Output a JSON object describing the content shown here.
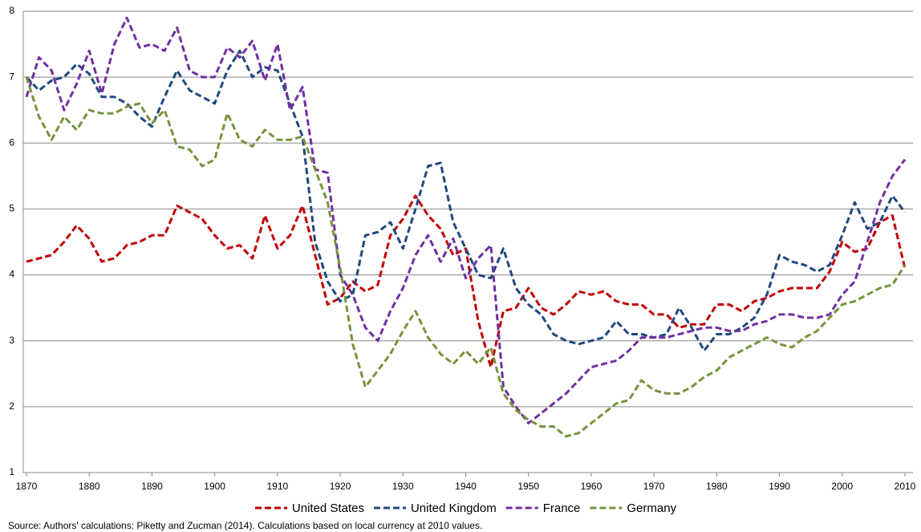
{
  "chart_data": {
    "type": "line",
    "x": [
      1870,
      1872,
      1874,
      1876,
      1878,
      1880,
      1882,
      1884,
      1886,
      1888,
      1890,
      1892,
      1894,
      1896,
      1898,
      1900,
      1902,
      1904,
      1906,
      1908,
      1910,
      1912,
      1914,
      1916,
      1918,
      1920,
      1922,
      1924,
      1926,
      1928,
      1930,
      1932,
      1934,
      1936,
      1938,
      1940,
      1942,
      1944,
      1946,
      1948,
      1950,
      1952,
      1954,
      1956,
      1958,
      1960,
      1962,
      1964,
      1966,
      1968,
      1970,
      1972,
      1974,
      1976,
      1978,
      1980,
      1982,
      1984,
      1986,
      1988,
      1990,
      1992,
      1994,
      1996,
      1998,
      2000,
      2002,
      2004,
      2006,
      2008,
      2010
    ],
    "series": [
      {
        "name": "United States",
        "color": "#c00000",
        "values": [
          4.2,
          4.25,
          4.3,
          4.5,
          4.75,
          4.55,
          4.2,
          4.25,
          4.45,
          4.5,
          4.6,
          4.6,
          5.05,
          4.95,
          4.85,
          4.6,
          4.4,
          4.45,
          4.25,
          4.9,
          4.4,
          4.6,
          5.05,
          4.3,
          3.55,
          3.65,
          3.9,
          3.75,
          3.85,
          4.6,
          4.85,
          5.2,
          4.9,
          4.7,
          4.3,
          4.4,
          3.3,
          2.6,
          3.45,
          3.5,
          3.8,
          3.5,
          3.4,
          3.55,
          3.75,
          3.7,
          3.75,
          3.6,
          3.55,
          3.55,
          3.4,
          3.4,
          3.2,
          3.25,
          3.25,
          3.55,
          3.55,
          3.45,
          3.6,
          3.65,
          3.75,
          3.8,
          3.8,
          3.8,
          4.05,
          4.5,
          4.35,
          4.4,
          4.8,
          4.9,
          4.1
        ]
      },
      {
        "name": "United Kingdom",
        "color": "#1f497d",
        "values": [
          7.0,
          6.8,
          6.95,
          7.0,
          7.2,
          7.05,
          6.7,
          6.7,
          6.6,
          6.4,
          6.25,
          6.7,
          7.1,
          6.8,
          6.7,
          6.6,
          7.1,
          7.4,
          7.0,
          7.15,
          7.1,
          6.6,
          6.1,
          4.5,
          3.9,
          3.6,
          3.7,
          4.6,
          4.65,
          4.8,
          4.4,
          5.0,
          5.65,
          5.7,
          4.8,
          4.4,
          4.0,
          3.95,
          4.4,
          3.8,
          3.55,
          3.4,
          3.1,
          3.0,
          2.95,
          3.0,
          3.05,
          3.3,
          3.1,
          3.1,
          3.05,
          3.1,
          3.5,
          3.2,
          2.85,
          3.1,
          3.1,
          3.2,
          3.35,
          3.7,
          4.3,
          4.2,
          4.15,
          4.05,
          4.15,
          4.6,
          5.1,
          4.7,
          4.8,
          5.2,
          4.95
        ]
      },
      {
        "name": "France",
        "color": "#7030a0",
        "values": [
          6.7,
          7.3,
          7.1,
          6.5,
          6.9,
          7.4,
          6.75,
          7.5,
          7.9,
          7.45,
          7.5,
          7.4,
          7.75,
          7.1,
          7.0,
          7.0,
          7.45,
          7.3,
          7.55,
          6.95,
          7.5,
          6.5,
          6.85,
          5.6,
          5.55,
          4.0,
          3.7,
          3.2,
          3.0,
          3.45,
          3.8,
          4.3,
          4.6,
          4.2,
          4.55,
          3.95,
          4.25,
          4.45,
          2.3,
          2.0,
          1.75,
          1.9,
          2.05,
          2.2,
          2.4,
          2.6,
          2.65,
          2.7,
          2.85,
          3.05,
          3.05,
          3.05,
          3.1,
          3.15,
          3.2,
          3.2,
          3.15,
          3.15,
          3.25,
          3.3,
          3.4,
          3.4,
          3.35,
          3.35,
          3.4,
          3.7,
          3.9,
          4.5,
          5.1,
          5.5,
          5.75
        ]
      },
      {
        "name": "Germany",
        "color": "#77933c",
        "values": [
          7.0,
          6.4,
          6.05,
          6.4,
          6.2,
          6.5,
          6.45,
          6.45,
          6.55,
          6.6,
          6.3,
          6.5,
          5.95,
          5.9,
          5.65,
          5.75,
          6.45,
          6.05,
          5.95,
          6.2,
          6.05,
          6.05,
          6.1,
          5.6,
          5.1,
          4.1,
          2.95,
          2.3,
          2.55,
          2.8,
          3.15,
          3.45,
          3.05,
          2.8,
          2.65,
          2.85,
          2.65,
          2.9,
          2.2,
          1.95,
          1.8,
          1.7,
          1.7,
          1.55,
          1.6,
          1.75,
          1.9,
          2.05,
          2.1,
          2.4,
          2.25,
          2.2,
          2.2,
          2.3,
          2.45,
          2.55,
          2.75,
          2.85,
          2.95,
          3.05,
          2.95,
          2.9,
          3.05,
          3.15,
          3.35,
          3.55,
          3.6,
          3.7,
          3.8,
          3.85,
          4.15
        ]
      }
    ],
    "xlim": [
      1870,
      2010
    ],
    "xticks": [
      1870,
      1880,
      1890,
      1900,
      1910,
      1920,
      1930,
      1940,
      1950,
      1960,
      1970,
      1980,
      1990,
      2000,
      2010
    ],
    "ylim": [
      1,
      8
    ],
    "yticks": [
      1,
      2,
      3,
      4,
      5,
      6,
      7,
      8
    ],
    "grid": true,
    "legend": "bottom",
    "note": "Source:  Authors' calculations: Piketty and Zucman (2014). Calculations based on local currency at 2010 values."
  }
}
